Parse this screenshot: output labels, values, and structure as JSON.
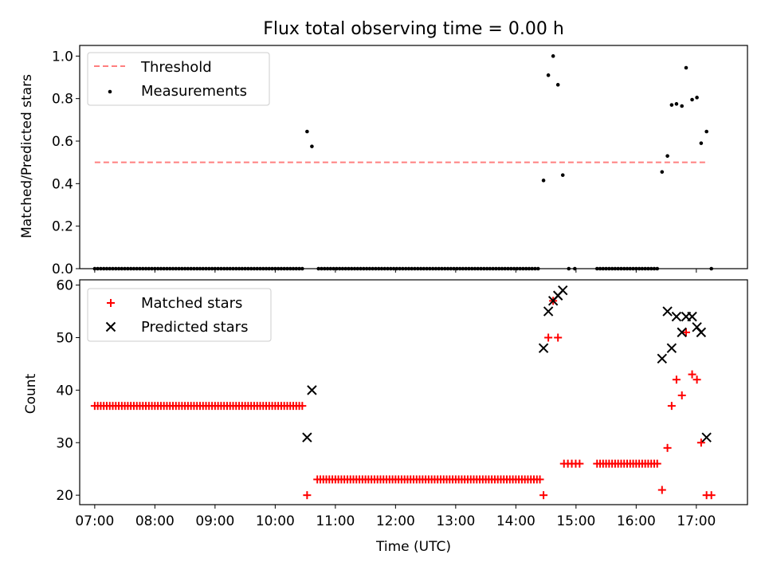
{
  "chart_data": [
    {
      "type": "scatter",
      "title": "Flux total observing time = 0.00 h",
      "xlabel": "",
      "ylabel": "Matched/Predicted stars",
      "xlim": [
        6.75,
        17.85
      ],
      "ylim": [
        0.0,
        1.05
      ],
      "yticks": [
        0.0,
        0.2,
        0.4,
        0.6,
        0.8,
        1.0
      ],
      "ytick_labels": [
        "0.0",
        "0.2",
        "0.4",
        "0.6",
        "0.8",
        "1.0"
      ],
      "legend_position": "top-left",
      "legend": [
        "Threshold",
        "Measurements"
      ],
      "threshold": {
        "name": "Threshold",
        "x_start": 7.0,
        "x_end": 17.2,
        "y": 0.5,
        "color": "#ff7f7f",
        "style": "dashed"
      },
      "measurements": {
        "name": "Measurements",
        "color": "#000000",
        "zero_ranges": [
          {
            "from": 7.0,
            "to": 10.45,
            "step": 0.05
          },
          {
            "from": 10.72,
            "to": 14.4,
            "step": 0.05
          },
          {
            "from": 14.88,
            "to": 15.0,
            "step": 0.1
          },
          {
            "from": 15.35,
            "to": 16.35,
            "step": 0.05
          }
        ],
        "extra_zero_points": [
          17.25
        ],
        "points": [
          [
            10.53,
            0.645
          ],
          [
            10.61,
            0.575
          ],
          [
            14.46,
            0.415
          ],
          [
            14.54,
            0.91
          ],
          [
            14.62,
            1.0
          ],
          [
            14.7,
            0.865
          ],
          [
            14.78,
            0.44
          ],
          [
            16.43,
            0.455
          ],
          [
            16.52,
            0.53
          ],
          [
            16.59,
            0.77
          ],
          [
            16.67,
            0.775
          ],
          [
            16.76,
            0.765
          ],
          [
            16.83,
            0.945
          ],
          [
            16.93,
            0.795
          ],
          [
            17.01,
            0.805
          ],
          [
            17.08,
            0.59
          ],
          [
            17.17,
            0.645
          ]
        ]
      }
    },
    {
      "type": "scatter",
      "title": "",
      "xlabel": "Time (UTC)",
      "ylabel": "Count",
      "xlim": [
        6.75,
        17.85
      ],
      "ylim": [
        18.2,
        61.0
      ],
      "yticks": [
        20,
        30,
        40,
        50,
        60
      ],
      "ytick_labels": [
        "20",
        "30",
        "40",
        "50",
        "60"
      ],
      "xticks": [
        7,
        8,
        9,
        10,
        11,
        12,
        13,
        14,
        15,
        16,
        17
      ],
      "xtick_labels": [
        "07:00",
        "08:00",
        "09:00",
        "10:00",
        "11:00",
        "12:00",
        "13:00",
        "14:00",
        "15:00",
        "16:00",
        "17:00"
      ],
      "legend_position": "top-left",
      "legend": [
        "Matched stars",
        "Predicted stars"
      ],
      "series": [
        {
          "name": "Matched stars",
          "marker": "+",
          "color": "#ff0000",
          "constant_ranges": [
            {
              "from": 7.0,
              "to": 10.45,
              "step": 0.05,
              "value": 37
            },
            {
              "from": 10.7,
              "to": 14.4,
              "step": 0.05,
              "value": 23
            },
            {
              "from": 14.8,
              "to": 15.12,
              "step": 0.065,
              "value": 26
            },
            {
              "from": 15.35,
              "to": 16.35,
              "step": 0.05,
              "value": 26
            }
          ],
          "points": [
            [
              10.53,
              20
            ],
            [
              14.46,
              20
            ],
            [
              14.54,
              50
            ],
            [
              14.62,
              57
            ],
            [
              14.7,
              50
            ],
            [
              16.43,
              21
            ],
            [
              16.52,
              29
            ],
            [
              16.59,
              37
            ],
            [
              16.67,
              42
            ],
            [
              16.76,
              39
            ],
            [
              16.83,
              51
            ],
            [
              16.93,
              43
            ],
            [
              17.01,
              42
            ],
            [
              17.08,
              30
            ],
            [
              17.17,
              20
            ],
            [
              17.25,
              20
            ]
          ]
        },
        {
          "name": "Predicted stars",
          "marker": "x",
          "color": "#000000",
          "points": [
            [
              10.53,
              31
            ],
            [
              10.61,
              40
            ],
            [
              14.46,
              48
            ],
            [
              14.54,
              55
            ],
            [
              14.62,
              57
            ],
            [
              14.7,
              58
            ],
            [
              14.78,
              59
            ],
            [
              16.43,
              46
            ],
            [
              16.52,
              55
            ],
            [
              16.59,
              48
            ],
            [
              16.67,
              54
            ],
            [
              16.76,
              51
            ],
            [
              16.83,
              54
            ],
            [
              16.93,
              54
            ],
            [
              17.01,
              52
            ],
            [
              17.08,
              51
            ],
            [
              17.17,
              31
            ]
          ]
        }
      ]
    }
  ]
}
